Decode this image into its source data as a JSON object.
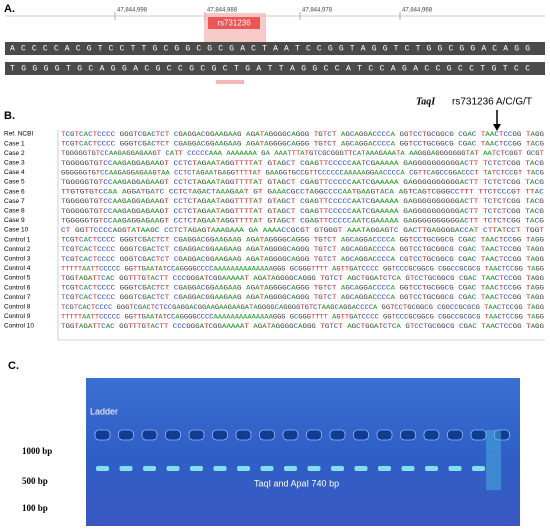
{
  "panel_a": {
    "label": "A.",
    "coordinates": [
      "47,844,998",
      "47,844,988",
      "47,844,978",
      "47,844,968"
    ],
    "snp_label": "rs731236",
    "sequence_top": "ACCCCACGTCCTTGCGGCGCGACTAATCCGGTAGGTCTGGCGGACAGG",
    "sequence_bottom": "TGGGGTGCAGGACGCCGCGCTGATTAGGCCATCCAGACCGCCTGTCC"
  },
  "panel_b": {
    "label": "B.",
    "enzyme": "TaqI",
    "snp": "rs731236  A/C/G/T",
    "rows": [
      {
        "name": "Ref. NCBI",
        "sequence": "TCGTCACTCCCC GGGTCGACTCT CGAGGACGGAAGAAG AGATAGGGGCAGGG TGTCT AGCAGGACCCCA GGTCCTGCGGCG CGAC TAACTCCGG TAGG"
      },
      {
        "name": "Case 1",
        "sequence": "TCGTCACTCCCC GGGTCGACTCT CGAGGACGGAAGAAG AGATAGGGGCAGGG TGTCT AGCAGGACCCCA GGTCCTGCGGCG CGAC TAACTCCGG TACG"
      },
      {
        "name": "Case 2",
        "sequence": "TGGGGGTGTCCAAGAGGAGAAGT CATT CCCCCAAA AAAAAAA GA AAATTTATGTCGCGGGTTCATAAAGAAATA AAGGGAGGGGGGGTAT AATCTCGGT GCGT"
      },
      {
        "name": "Case 3",
        "sequence": "TGGGGGTGTCCAAGAGGAGAAGT CCTCTAGAATAGGTTTTAT GTAGCT CGAGTTCCCCCAATCGAAAAA GAGGGGGGGGGGACTT TCTCTCGG TACG"
      },
      {
        "name": "Case 4",
        "sequence": "GGGGGGTGTCCAAGAGGAGAAGTAA CCTCTAGAATGAGGTTTTAT GAAGGTGCCGTTCCCCCCAAAAAGGAACCCCA CGTTCAGCCGGACCCT TATCTCCGT TACG"
      },
      {
        "name": "Case 5",
        "sequence": "TGGGGGTGTCCAAGAGGAGAAGT CCTCTAGAATAGGTTTTAT GTAGCT CGAGTTCCCCCAATCGAAAAA GAGGGGGGGGGGACTT TCTCTCGG TACG"
      },
      {
        "name": "Case 6",
        "sequence": "TTGTGTGTCCAA AGGATGATC CCTCTAGACTAAAGAAT GT GAAACGCCTAGGCCCCAATGAAGTACA AGTCAGTCGGGCCTTT TTCTCCCGT TTAC"
      },
      {
        "name": "Case 7",
        "sequence": "TGGGGGTGTCCAAGAGGAGAAGT CCTCTAGAATAGGTTTTAT GTAGCT CGAGTTCCCCCAATCGAAAAA GAGGGGGGGGGGACTT TCTCTCGG TACG"
      },
      {
        "name": "Case 8",
        "sequence": "TGGGGGTGTCCAAGAGGAGAAGT CCTCTAGAATAGGTTTTAT GTAGCT CGAGTTCCCCCAATCGAAAAA GAGGGGGGGGGGACTT TCTCTCGG TACG"
      },
      {
        "name": "Case 9",
        "sequence": "TGGGGGTGTCCAAGAGGAGAAGT CCTCTAGAATAGGTTTTAT GTAGCT CGAGTTCCCCCAATCGAAAAA GAGGGGGGGGGGACTT TCTCTCGG TACG"
      },
      {
        "name": "Case 10",
        "sequence": "CT GGTTCCCCAGGTATAAGC CCTCTAGAGTAAAGAAA GA AAAACCGCGT GTGGGT AAATAGGAGTC GACTTGAGGGGACCAT CTTATCCT TGGT"
      },
      {
        "name": "Control 1",
        "sequence": "TCGTCACTCCCC GGGTCGACTCT CGAGGACGGAAGAAG AGATAGGGGCAGGG TGTCT AGCAGGACCCCA GGTCCTGCGGCG CGAC TAACTCCGG TAGG"
      },
      {
        "name": "Control 2",
        "sequence": "TCGTCACTCCCC GGGTCGACTCT CGAGGACGGAAGAAG AGATAGGGGCAGGG TGTCT AGCAGGACCCCA GGTCCTGCGGCG CGAC TAACTCCGG TAGG"
      },
      {
        "name": "Control 3",
        "sequence": "TCGTCACTCCCC GGGTCGACTCT CGAGGACGGAAGAAG AGATAGGGGCAGGG TGTCT AGCAGGACCCCA CGTCCTGCGGCG CGAC TAACTCCGG TAGG"
      },
      {
        "name": "Control 4",
        "sequence": "TTTTTAATTCCCCC GGTTGAATATCCAGGGGCCCCAAAAAAAAAAAAAAGGG GCGGGTTTT AGTTGATCCCC GGTCCCGCGGCG CGGCCGCGCG TAACTCCGG TAGG"
      },
      {
        "name": "Control 5",
        "sequence": "TGGTAGATTCAC GGTTTGTACTT CCCGGGATCGGAAAAAT AGATAGGGGCAGGG TGTCT AGCTGGATCTCA GTCCTGCGGCG CGAC TAACTCCGG TAGG"
      },
      {
        "name": "Control 6",
        "sequence": "TCGTCACTCCCC GGGTCGACTCT CGAGGACGGAAGAAG AGATAGGGGCAGGG TGTCT AGCAGGACCCCA GGTCCTGCGGCG CGAC TAACTCCGG TAGG"
      },
      {
        "name": "Control 7",
        "sequence": "TCGTCACTCCCC GGGTCGACTCT CGAGGACGGAAGAAG AGATAGGGGCAGGG TGTCT AGCAGGACCCCA GGTCCTGCGGCG CGAC TAACTCCGG TAGG"
      },
      {
        "name": "Control 8",
        "sequence": "TCGTCACTCCCC GGGTCGACTCTCCGAGGACGGAAGAAGAAGATAGGGGCAGGGGTGTCTAAGCAGGACCCCA GGTCCTGCGGCG CGGCCGCGCG TAACTCCGG TAGG"
      },
      {
        "name": "Control 9",
        "sequence": "TTTTTAATTCCCCC GGTTGAATATCCAGGGGCCCCAAAAAAAAAAAAAAGGG GCGGGTTTT AGTTGATCCCC GGTCCCGCGGCG CGGCCGCGCG TAACTCCGG TAGG"
      },
      {
        "name": "Control 10",
        "sequence": "TGGTAGATTCAC GGTTTGTACTT CCCGGGATCGGAAAAAT AGATAGGGGCAGGG TGTCT AGCTGGATCTCA GTCCTGCGGCG CGAC TAACTCCGG TAGG"
      }
    ]
  },
  "panel_c": {
    "label": "C.",
    "ladder": "Ladder",
    "markers": [
      "1000 bp",
      "500 bp",
      "100 bp"
    ],
    "band_label": "TaqI and ApaI  740 bp"
  }
}
